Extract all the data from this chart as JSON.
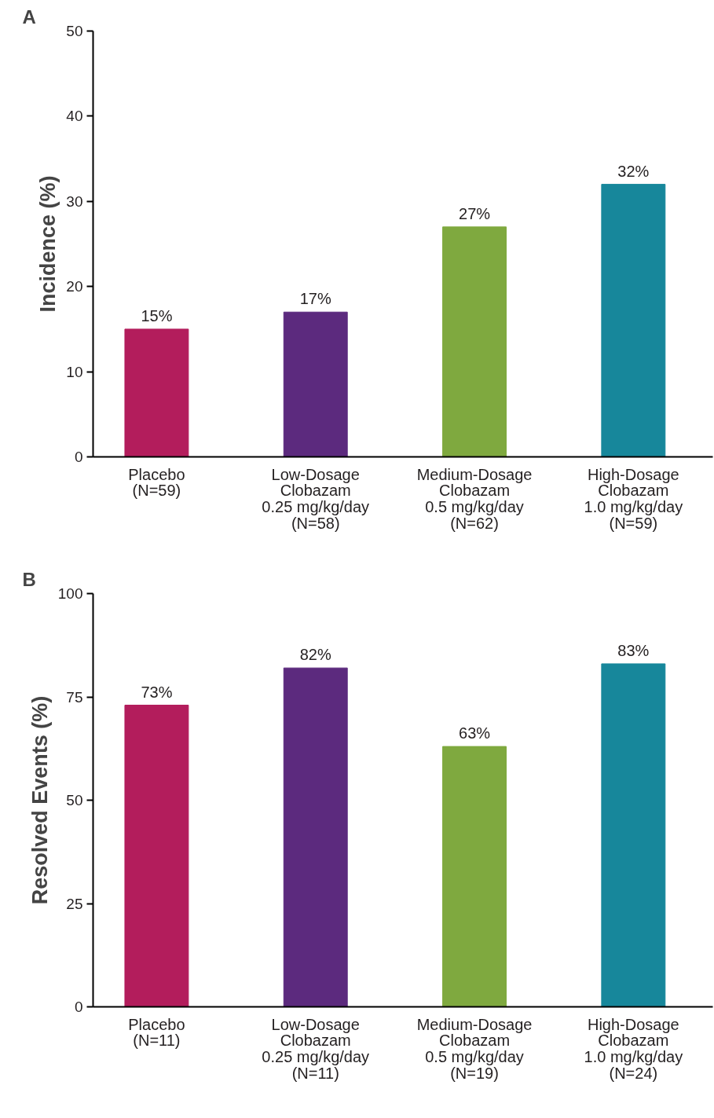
{
  "chart_data": [
    {
      "type": "bar",
      "title": "A",
      "ylabel": "Incidence (%)",
      "categories": [
        "Placebo\n(N=59)",
        "Low-Dosage\nClobazam\n0.25 mg/kg/day\n(N=58)",
        "Medium-Dosage\nClobazam\n0.5 mg/kg/day\n(N=62)",
        "High-Dosage\nClobazam\n1.0 mg/kg/day\n(N=59)"
      ],
      "values": [
        15,
        17,
        27,
        32
      ],
      "value_labels": [
        "15%",
        "17%",
        "27%",
        "32%"
      ],
      "colors": [
        "#b31d5c",
        "#5c2a7e",
        "#7fa93f",
        "#17879b"
      ],
      "ylim": [
        0,
        50
      ],
      "yticks": [
        0,
        10,
        20,
        30,
        40,
        50
      ],
      "grid": false
    },
    {
      "type": "bar",
      "title": "B",
      "ylabel": "Resolved Events (%)",
      "categories": [
        "Placebo\n(N=11)",
        "Low-Dosage\nClobazam\n0.25 mg/kg/day\n(N=11)",
        "Medium-Dosage\nClobazam\n0.5 mg/kg/day\n(N=19)",
        "High-Dosage\nClobazam\n1.0 mg/kg/day\n(N=24)"
      ],
      "values": [
        73,
        82,
        63,
        83
      ],
      "value_labels": [
        "73%",
        "82%",
        "63%",
        "83%"
      ],
      "colors": [
        "#b31d5c",
        "#5c2a7e",
        "#7fa93f",
        "#17879b"
      ],
      "ylim": [
        0,
        100
      ],
      "yticks": [
        0,
        25,
        50,
        75,
        100
      ],
      "grid": false
    }
  ]
}
